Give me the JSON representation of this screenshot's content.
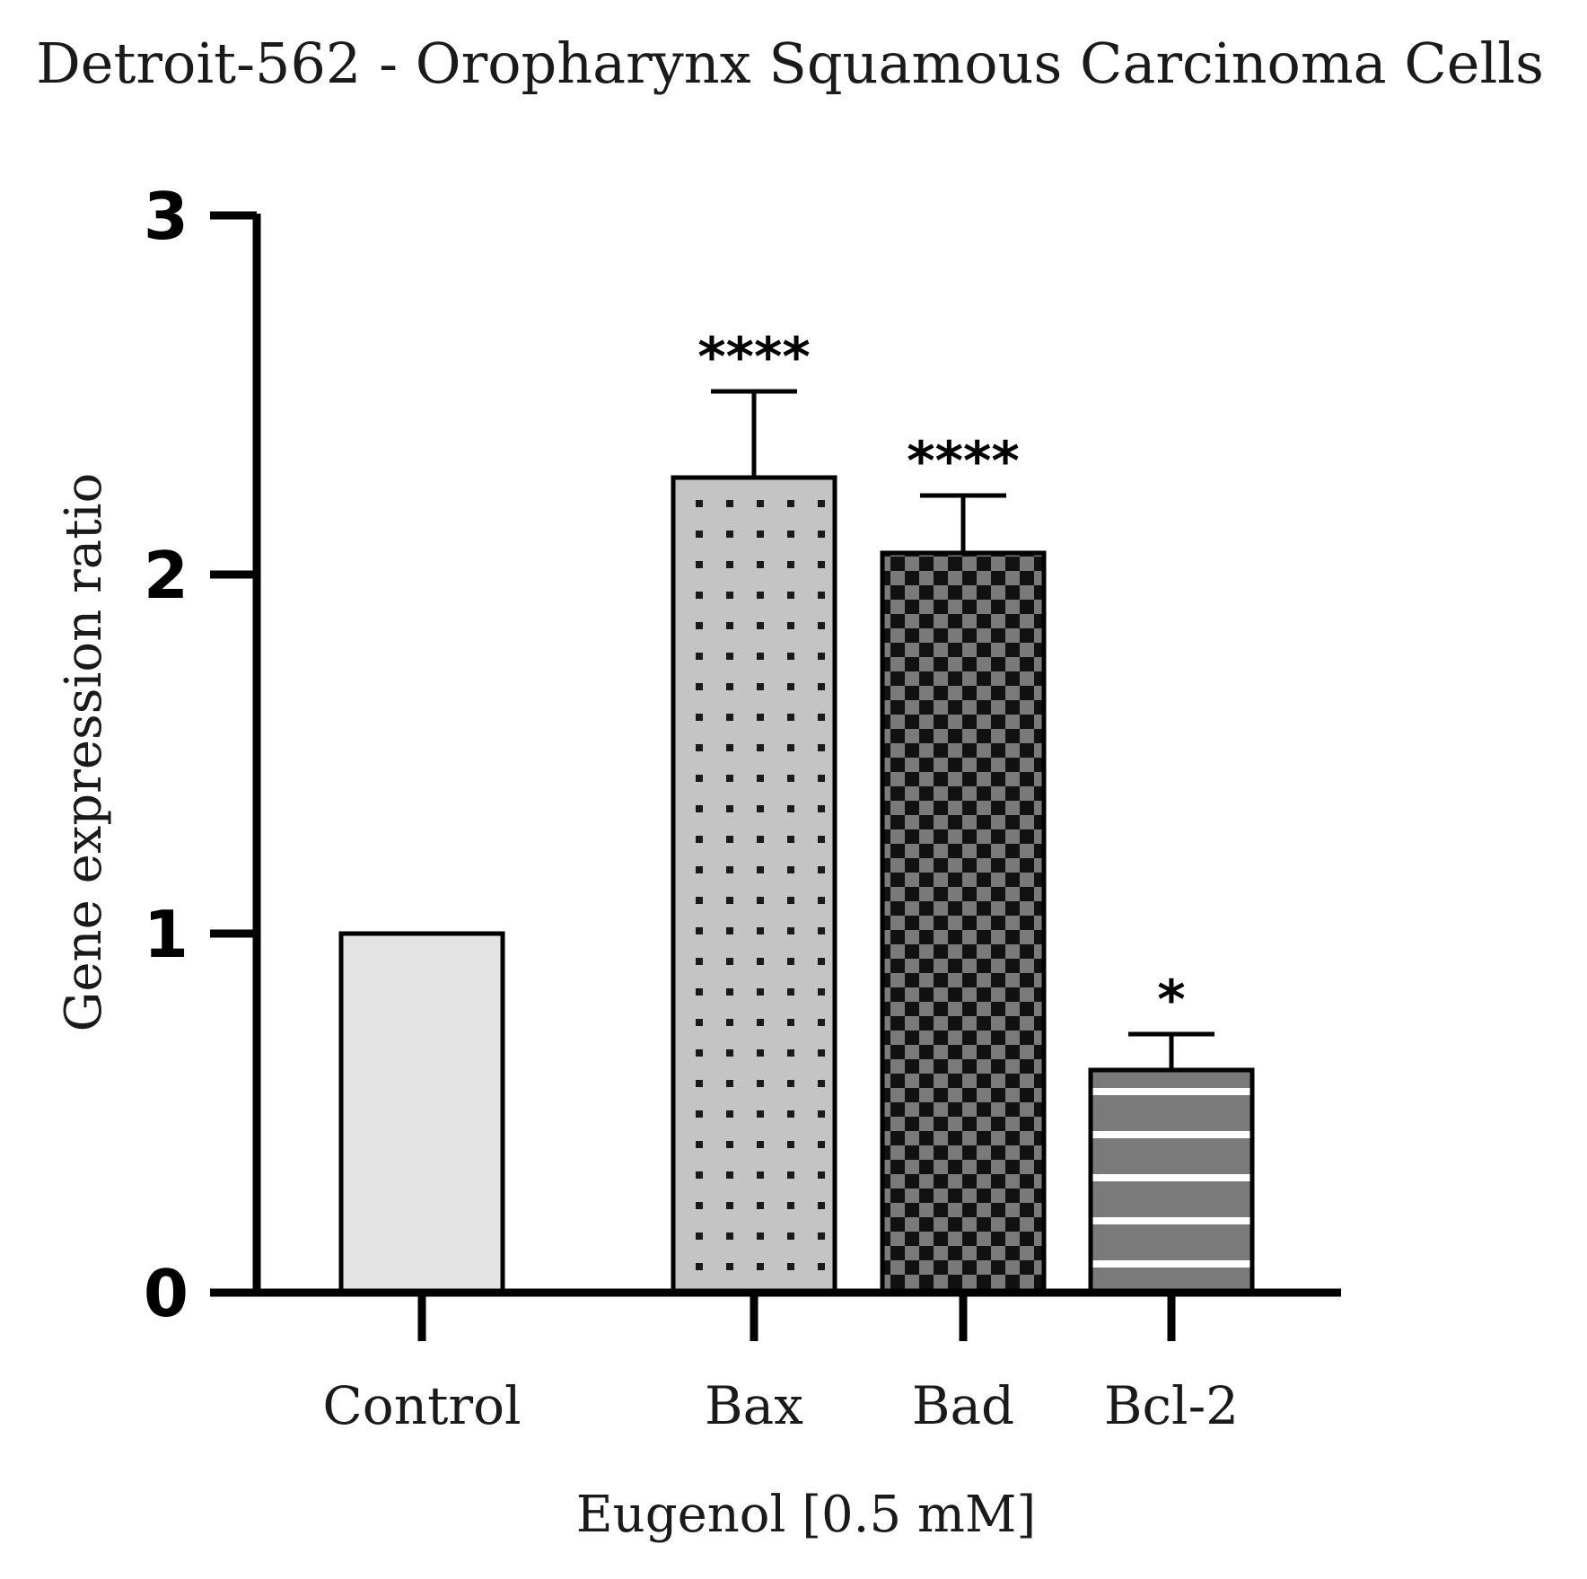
{
  "chart_data": {
    "type": "bar",
    "title": "Detroit-562 - Oropharynx Squamous Carcinoma Cells",
    "xlabel": "Eugenol [0.5 mM]",
    "ylabel": "Gene expression ratio",
    "ylim": [
      0,
      3
    ],
    "yticks": [
      "0",
      "1",
      "2",
      "3"
    ],
    "grid": false,
    "categories": [
      "Control",
      "Bax",
      "Bad",
      "Bcl-2"
    ],
    "values": [
      1.0,
      2.27,
      2.06,
      0.62
    ],
    "errors": [
      0,
      0.24,
      0.16,
      0.1
    ],
    "significance": [
      "",
      "****",
      "****",
      "*"
    ],
    "patterns": [
      "solid-light-gray",
      "dots",
      "checker",
      "horizontal-stripes"
    ]
  }
}
